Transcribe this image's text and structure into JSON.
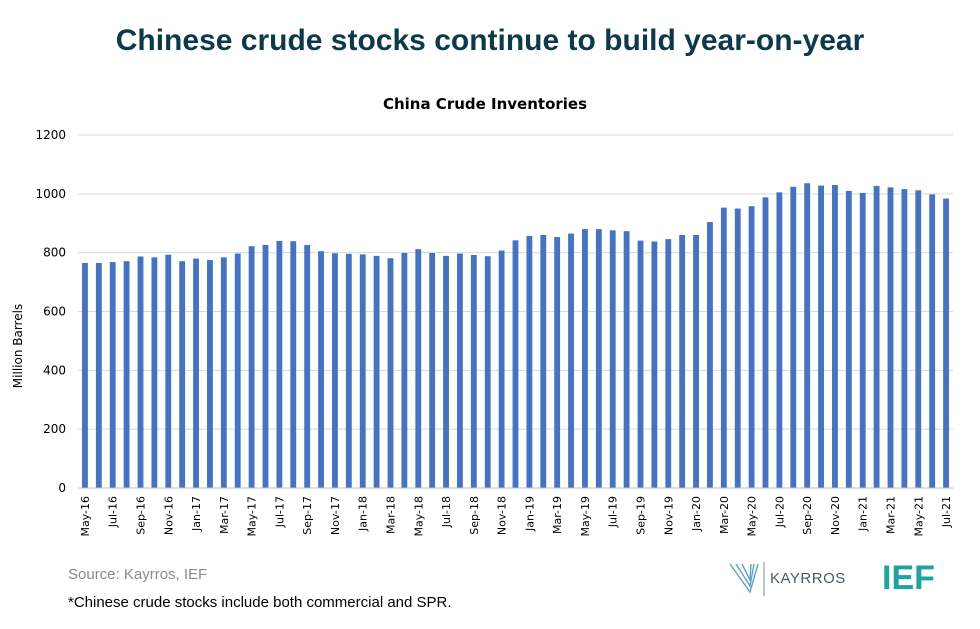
{
  "headline": "Chinese crude stocks continue to build year-on-year",
  "source": "Source: Kayrros, IEF",
  "footnote": "*Chinese crude stocks include both commercial and SPR.",
  "logos": {
    "kayrros": "KAYRROS",
    "ief": "IEF",
    "kayrros_color": "#5fa3c4",
    "ief_color": "#1fa3a0"
  },
  "chart_data": {
    "type": "bar",
    "title": "China Crude Inventories",
    "xlabel": "",
    "ylabel": "Million Barrels",
    "ylim": [
      0,
      1200
    ],
    "yticks": [
      0,
      200,
      400,
      600,
      800,
      1000,
      1200
    ],
    "grid": true,
    "bar_color": "#4472c4",
    "categories": [
      "May-16",
      "Jun-16",
      "Jul-16",
      "Aug-16",
      "Sep-16",
      "Oct-16",
      "Nov-16",
      "Dec-16",
      "Jan-17",
      "Feb-17",
      "Mar-17",
      "Apr-17",
      "May-17",
      "Jun-17",
      "Jul-17",
      "Aug-17",
      "Sep-17",
      "Oct-17",
      "Nov-17",
      "Dec-17",
      "Jan-18",
      "Feb-18",
      "Mar-18",
      "Apr-18",
      "May-18",
      "Jun-18",
      "Jul-18",
      "Aug-18",
      "Sep-18",
      "Oct-18",
      "Nov-18",
      "Dec-18",
      "Jan-19",
      "Feb-19",
      "Mar-19",
      "Apr-19",
      "May-19",
      "Jun-19",
      "Jul-19",
      "Aug-19",
      "Sep-19",
      "Oct-19",
      "Nov-19",
      "Dec-19",
      "Jan-20",
      "Feb-20",
      "Mar-20",
      "Apr-20",
      "May-20",
      "Jun-20",
      "Jul-20",
      "Aug-20",
      "Sep-20",
      "Oct-20",
      "Nov-20",
      "Dec-20",
      "Jan-21",
      "Feb-21",
      "Mar-21",
      "Apr-21",
      "May-21",
      "Jun-21",
      "Jul-21"
    ],
    "tick_labels": [
      "May-16",
      "Jul-16",
      "Sep-16",
      "Nov-16",
      "Jan-17",
      "Mar-17",
      "May-17",
      "Jul-17",
      "Sep-17",
      "Nov-17",
      "Jan-18",
      "Mar-18",
      "May-18",
      "Jul-18",
      "Sep-18",
      "Nov-18",
      "Jan-19",
      "Mar-19",
      "May-19",
      "Jul-19",
      "Sep-19",
      "Nov-19",
      "Jan-20",
      "Mar-20",
      "May-20",
      "Jul-20",
      "Sep-20",
      "Nov-20",
      "Jan-21",
      "Mar-21",
      "May-21",
      "Jul-21"
    ],
    "values": [
      765,
      765,
      768,
      771,
      787,
      784,
      793,
      771,
      780,
      775,
      784,
      797,
      822,
      826,
      840,
      839,
      826,
      805,
      798,
      796,
      794,
      789,
      781,
      799,
      812,
      799,
      789,
      797,
      792,
      788,
      807,
      842,
      857,
      860,
      853,
      865,
      880,
      880,
      876,
      873,
      841,
      838,
      846,
      860,
      860,
      904,
      953,
      950,
      958,
      988,
      1005,
      1024,
      1036,
      1028,
      1030,
      1010,
      1003,
      1027,
      1022,
      1016,
      1012,
      998,
      984
    ]
  }
}
